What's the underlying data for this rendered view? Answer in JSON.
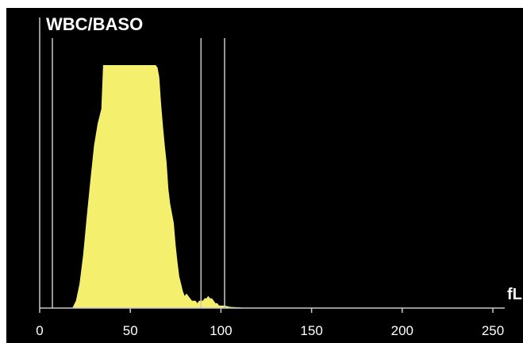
{
  "chart_data": {
    "type": "area",
    "title": "WBC/BASO",
    "xlabel": "fL",
    "ylabel": "",
    "xlim": [
      0,
      250
    ],
    "ylim": [
      0,
      100
    ],
    "x_ticks": [
      0,
      50,
      100,
      150,
      200,
      250
    ],
    "x_tick_labels": [
      "0",
      "50",
      "100",
      "150",
      "200",
      "250"
    ],
    "series": [
      {
        "color": "#f4f06e",
        "x": [
          18,
          20,
          22,
          24,
          26,
          28,
          30,
          32,
          34,
          35,
          36,
          38,
          40,
          45,
          50,
          55,
          60,
          62,
          64,
          65,
          66,
          67,
          68,
          69,
          70,
          71,
          72,
          73,
          74,
          75,
          76,
          77,
          78,
          79,
          80,
          81,
          82,
          83,
          84,
          85,
          86,
          87,
          88,
          89,
          90,
          91,
          92,
          93,
          94,
          95,
          96,
          97,
          98,
          99,
          100,
          102,
          105,
          110,
          115
        ],
        "y": [
          0,
          3,
          10,
          22,
          38,
          53,
          67,
          76,
          82,
          100,
          100,
          100,
          100,
          100,
          100,
          100,
          100,
          100,
          100,
          99,
          95,
          84,
          75,
          67,
          60,
          49,
          43,
          39,
          35,
          26,
          19,
          13,
          10,
          7,
          5,
          6,
          5,
          4,
          3,
          3,
          3,
          2,
          3,
          3,
          3,
          4,
          4,
          5,
          4,
          4,
          3,
          2,
          2,
          1,
          1,
          1,
          0.5,
          0.3,
          0
        ]
      }
    ],
    "markers_x": [
      7,
      89,
      102
    ],
    "grid": false,
    "colors": {
      "background": "#000000",
      "fill": "#f4f06e",
      "lines": "#c8c8c8",
      "text": "#ffffff"
    }
  }
}
